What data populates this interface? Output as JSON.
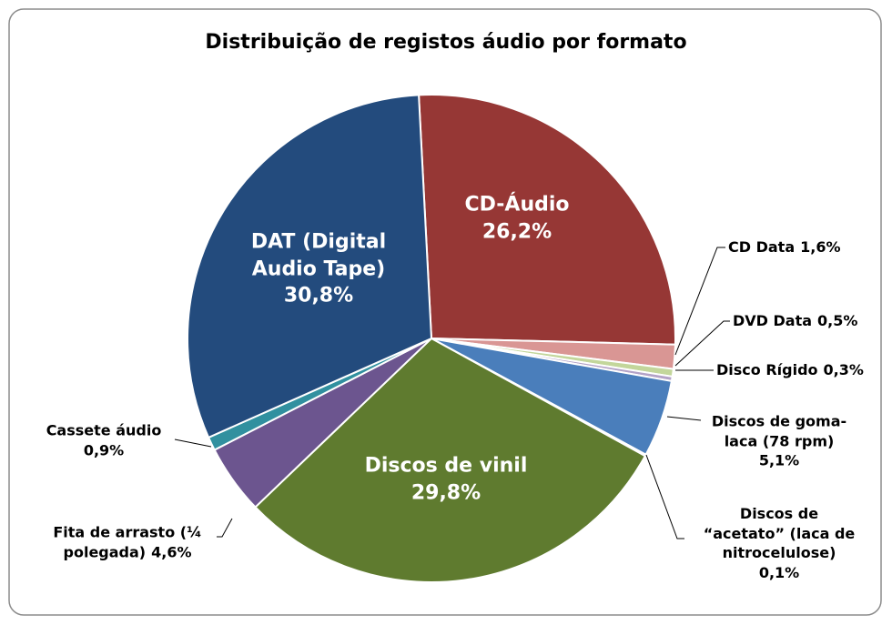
{
  "chart_data": {
    "type": "pie",
    "title": "Distribuição de registos áudio por formato",
    "categories": [
      "CD-Áudio",
      "CD Data",
      "DVD Data",
      "Disco Rígido",
      "Discos de goma-laca (78 rpm)",
      "Discos de “acetato” (laca de nitrocelulose)",
      "Discos de vinil",
      "Fita de arrasto (¼ polegada)",
      "Cassete áudio",
      "DAT (Digital Audio Tape)"
    ],
    "values": [
      26.2,
      1.6,
      0.5,
      0.3,
      5.1,
      0.1,
      29.8,
      4.6,
      0.9,
      30.8
    ],
    "value_labels": [
      "26,2%",
      "1,6%",
      "0,5%",
      "0,3%",
      "5,1%",
      "0,1%",
      "29,8%",
      "4,6%",
      "0,9%",
      "30,8%"
    ],
    "colors": [
      "#963735",
      "#d99694",
      "#c3d69b",
      "#b3a2c7",
      "#4a7ebb",
      "#8eb4e3",
      "#5f7b2f",
      "#6c558f",
      "#31909f",
      "#234b7d"
    ]
  }
}
